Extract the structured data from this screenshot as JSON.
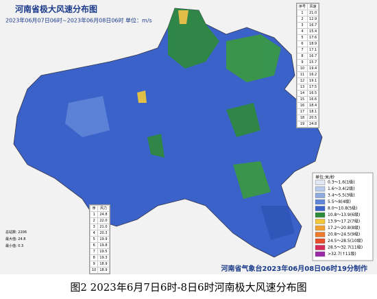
{
  "title": "河南省极大风速分布图",
  "subtitle": "2023年06月07日06时~2023年06月08日06时 单位：m/s",
  "legend": {
    "unit": "单位:米/秒",
    "items": [
      {
        "label": "0.3～1.6(1级)",
        "color": "#dfe7f5"
      },
      {
        "label": "1.6～3.4(2级)",
        "color": "#b9cbea"
      },
      {
        "label": "3.4～5.5(3级)",
        "color": "#8eaadf"
      },
      {
        "label": "5.5～8(4级)",
        "color": "#5f86d8"
      },
      {
        "label": "8.0～10.8(5级)",
        "color": "#3b62c9"
      },
      {
        "label": "10.8～13.9(6级)",
        "color": "#2e8b3a"
      },
      {
        "label": "13.9～17.2(7级)",
        "color": "#f2c83a"
      },
      {
        "label": "17.2～20.8(8级)",
        "color": "#f0a030"
      },
      {
        "label": "20.8～24.5(9级)",
        "color": "#ef7a2a"
      },
      {
        "label": "24.5～28.5(10级)",
        "color": "#e84c2a"
      },
      {
        "label": "28.5～32.7(11级)",
        "color": "#d42a5a"
      },
      {
        "label": ">32.7(↑11级)",
        "color": "#9b2aa8"
      }
    ]
  },
  "top_table": {
    "header": [
      "序号",
      "风速"
    ],
    "rows": [
      [
        "1",
        "21.0"
      ],
      [
        "2",
        "12.9"
      ],
      [
        "3",
        "16.7"
      ],
      [
        "4",
        "15.4"
      ],
      [
        "5",
        "17.6"
      ],
      [
        "6",
        "18.9"
      ],
      [
        "7",
        "17.1"
      ],
      [
        "8",
        "16.7"
      ],
      [
        "9",
        "15.7"
      ],
      [
        "10",
        "19.4"
      ],
      [
        "11",
        "16.2"
      ],
      [
        "12",
        "19.1"
      ],
      [
        "13",
        "17.5"
      ],
      [
        "14",
        "16.5"
      ],
      [
        "15",
        "16.6"
      ],
      [
        "16",
        "18.4"
      ],
      [
        "17",
        "18.1"
      ],
      [
        "18",
        "20.5"
      ],
      [
        "19",
        "24.8"
      ]
    ]
  },
  "bottom_table": {
    "header": [
      "序",
      "风力"
    ],
    "rows": [
      [
        "1",
        "24.8"
      ],
      [
        "2",
        "22.0"
      ],
      [
        "3",
        "21.0"
      ],
      [
        "4",
        "20.3"
      ],
      [
        "5",
        "19.9"
      ],
      [
        "6",
        "19.8"
      ],
      [
        "7",
        "19.5"
      ],
      [
        "8",
        "19.3"
      ],
      [
        "9",
        "18.9"
      ],
      [
        "10",
        "18.9"
      ]
    ]
  },
  "stats": [
    "总站数: 2206",
    "最大值: 24.8",
    "最小值: 0.3"
  ],
  "footer": "河南省气象台2023年06月08日06时19分制作",
  "caption": "图2  2023年6月7日6时-8日6时河南极大风速分布图"
}
